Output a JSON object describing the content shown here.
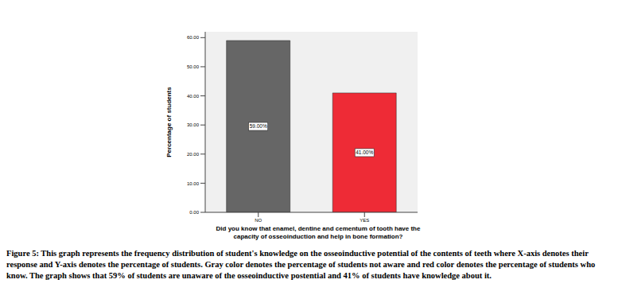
{
  "chart_data": {
    "type": "bar",
    "categories": [
      "NO",
      "YES"
    ],
    "values": [
      59,
      41
    ],
    "value_labels": [
      "59.00%",
      "41.00%"
    ],
    "data_labels": true,
    "colors": [
      "#666666",
      "#ee2b36"
    ],
    "ylim": [
      0,
      62
    ],
    "yticks": [
      {
        "value": 0,
        "label": "0.00"
      },
      {
        "value": 10,
        "label": "10.00"
      },
      {
        "value": 20,
        "label": "20.00"
      },
      {
        "value": 30,
        "label": "30.00"
      },
      {
        "value": 40,
        "label": "40.00"
      },
      {
        "value": 50,
        "label": "50.00"
      },
      {
        "value": 60,
        "label": "60.00"
      }
    ],
    "grid": false,
    "y_label": "Percentage of students",
    "x_label": "Did you know that enamel, dentine and cementum of tooth have the capacity of osseoinduction and help in bone formation?",
    "caption": "Figure 5: This graph represents the frequency distribution of student's knowledge on the osseoinductive potential of the contents of teeth where X-axis denotes their response and Y-axis denotes the percentage of students. Gray color denotes the percentage of students not aware and red color denotes the percentage of students who know. The graph shows that 59% of students are unaware of the osseoinductive postential and 41% of students have knowledge about it."
  }
}
